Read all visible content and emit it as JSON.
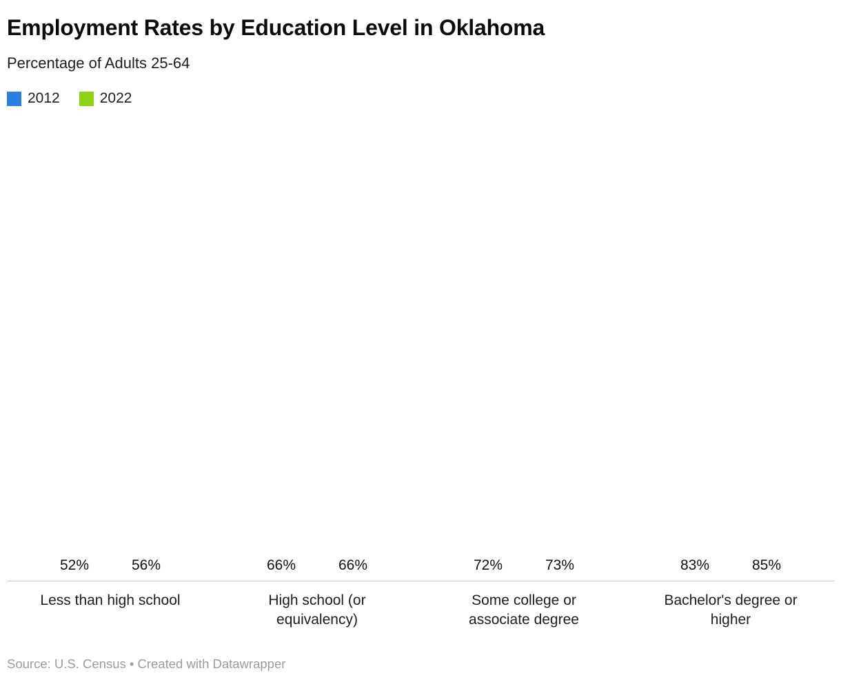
{
  "header": {
    "title": "Employment Rates by Education Level in Oklahoma",
    "subtitle": "Percentage of Adults 25-64"
  },
  "legend": [
    {
      "label": "2012",
      "color": "#2e7de1"
    },
    {
      "label": "2022",
      "color": "#8dd216"
    }
  ],
  "chart_data": {
    "type": "bar",
    "title": "Employment Rates by Education Level in Oklahoma",
    "subtitle": "Percentage of Adults 25-64",
    "categories": [
      "Less than high school",
      "High school (or equivalency)",
      "Some college or associate degree",
      "Bachelor's degree or higher"
    ],
    "series": [
      {
        "name": "2012",
        "color": "#2e7de1",
        "values": [
          52,
          66,
          72,
          83
        ]
      },
      {
        "name": "2022",
        "color": "#8dd216",
        "values": [
          56,
          66,
          73,
          85
        ]
      }
    ],
    "value_suffix": "%",
    "ylim": [
      0,
      90
    ],
    "grid": false,
    "legend_position": "top-left",
    "xlabel": "",
    "ylabel": ""
  },
  "footer": {
    "source": "Source: U.S. Census • Created with Datawrapper"
  }
}
